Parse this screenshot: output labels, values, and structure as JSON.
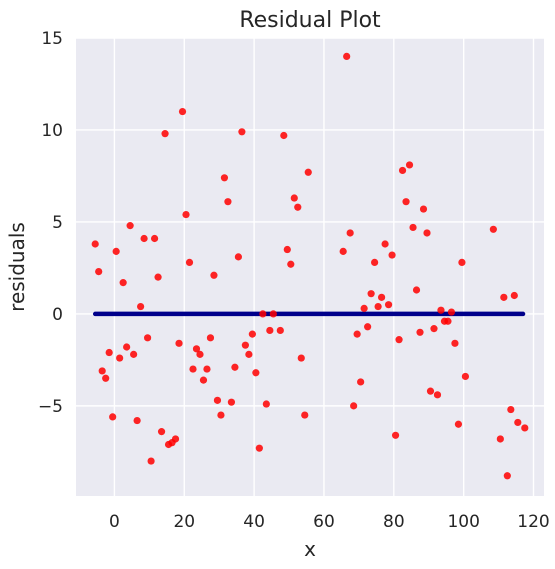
{
  "chart_data": {
    "type": "scatter",
    "title": "Residual Plot",
    "xlabel": "x",
    "ylabel": "residuals",
    "xlim": [
      -11,
      123
    ],
    "ylim": [
      -9.9,
      15
    ],
    "x_ticks": [
      0,
      20,
      40,
      60,
      80,
      100,
      120
    ],
    "y_ticks": [
      -5,
      0,
      5,
      10,
      15
    ],
    "x_tick_labels": [
      "0",
      "20",
      "40",
      "60",
      "80",
      "100",
      "120"
    ],
    "y_tick_labels": [
      "−5",
      "0",
      "5",
      "10",
      "15"
    ],
    "grid": true,
    "reference_line": {
      "x": [
        -5.5,
        117
      ],
      "y": 0,
      "color": "#00008b"
    },
    "series": [
      {
        "color": "#ff0000",
        "points": [
          [
            -5.5,
            3.8
          ],
          [
            -4.5,
            2.3
          ],
          [
            -3.5,
            -3.1
          ],
          [
            -2.5,
            -3.5
          ],
          [
            -1.5,
            -2.1
          ],
          [
            -0.5,
            -5.6
          ],
          [
            0.5,
            3.4
          ],
          [
            1.5,
            -2.4
          ],
          [
            2.5,
            1.7
          ],
          [
            3.5,
            -1.8
          ],
          [
            4.5,
            4.8
          ],
          [
            5.5,
            -2.2
          ],
          [
            6.5,
            -5.8
          ],
          [
            7.5,
            0.4
          ],
          [
            8.5,
            4.1
          ],
          [
            9.5,
            -1.3
          ],
          [
            10.5,
            -8.0
          ],
          [
            11.5,
            4.1
          ],
          [
            12.5,
            2.0
          ],
          [
            13.5,
            -6.4
          ],
          [
            14.5,
            9.8
          ],
          [
            15.5,
            -7.1
          ],
          [
            16.5,
            -7.0
          ],
          [
            17.5,
            -6.8
          ],
          [
            18.5,
            -1.6
          ],
          [
            19.5,
            11.0
          ],
          [
            20.5,
            5.4
          ],
          [
            21.5,
            2.8
          ],
          [
            22.5,
            -3.0
          ],
          [
            23.5,
            -1.9
          ],
          [
            24.5,
            -2.2
          ],
          [
            25.5,
            -3.6
          ],
          [
            26.5,
            -3.0
          ],
          [
            27.5,
            -1.3
          ],
          [
            28.5,
            2.1
          ],
          [
            29.5,
            -4.7
          ],
          [
            30.5,
            -5.5
          ],
          [
            31.5,
            7.4
          ],
          [
            32.5,
            6.1
          ],
          [
            33.5,
            -4.8
          ],
          [
            34.5,
            -2.9
          ],
          [
            35.5,
            3.1
          ],
          [
            36.5,
            9.9
          ],
          [
            37.5,
            -1.7
          ],
          [
            38.5,
            -2.2
          ],
          [
            39.5,
            -1.1
          ],
          [
            40.5,
            -3.2
          ],
          [
            41.5,
            -7.3
          ],
          [
            42.5,
            0.0
          ],
          [
            43.5,
            -4.9
          ],
          [
            44.5,
            -0.9
          ],
          [
            45.5,
            0.0
          ],
          [
            47.5,
            -0.9
          ],
          [
            48.5,
            9.7
          ],
          [
            49.5,
            3.5
          ],
          [
            50.5,
            2.7
          ],
          [
            51.5,
            6.3
          ],
          [
            52.5,
            5.8
          ],
          [
            53.5,
            -2.4
          ],
          [
            54.5,
            -5.5
          ],
          [
            55.5,
            7.7
          ],
          [
            65.5,
            3.4
          ],
          [
            66.5,
            14.0
          ],
          [
            67.5,
            4.4
          ],
          [
            68.5,
            -5.0
          ],
          [
            69.5,
            -1.1
          ],
          [
            70.5,
            -3.7
          ],
          [
            71.5,
            0.3
          ],
          [
            72.5,
            -0.7
          ],
          [
            73.5,
            1.1
          ],
          [
            74.5,
            2.8
          ],
          [
            75.5,
            0.4
          ],
          [
            76.5,
            0.9
          ],
          [
            77.5,
            3.8
          ],
          [
            78.5,
            0.5
          ],
          [
            79.5,
            3.2
          ],
          [
            80.5,
            -6.6
          ],
          [
            81.5,
            -1.4
          ],
          [
            82.5,
            7.8
          ],
          [
            83.5,
            6.1
          ],
          [
            84.5,
            8.1
          ],
          [
            85.5,
            4.7
          ],
          [
            86.5,
            1.3
          ],
          [
            87.5,
            -1.0
          ],
          [
            88.5,
            5.7
          ],
          [
            89.5,
            4.4
          ],
          [
            90.5,
            -4.2
          ],
          [
            91.5,
            -0.8
          ],
          [
            92.5,
            -4.4
          ],
          [
            93.5,
            0.2
          ],
          [
            94.5,
            -0.4
          ],
          [
            95.5,
            -0.4
          ],
          [
            96.5,
            0.1
          ],
          [
            97.5,
            -1.6
          ],
          [
            98.5,
            -6.0
          ],
          [
            99.5,
            2.8
          ],
          [
            100.5,
            -3.4
          ],
          [
            108.5,
            4.6
          ],
          [
            110.5,
            -6.8
          ],
          [
            111.5,
            0.9
          ],
          [
            112.5,
            -8.8
          ],
          [
            113.5,
            -5.2
          ],
          [
            114.5,
            1.0
          ],
          [
            115.5,
            -5.9
          ],
          [
            117.5,
            -6.2
          ]
        ]
      }
    ]
  },
  "colors": {
    "plot_background": "#eaeaf2",
    "grid": "#ffffff",
    "text": "#262626"
  }
}
